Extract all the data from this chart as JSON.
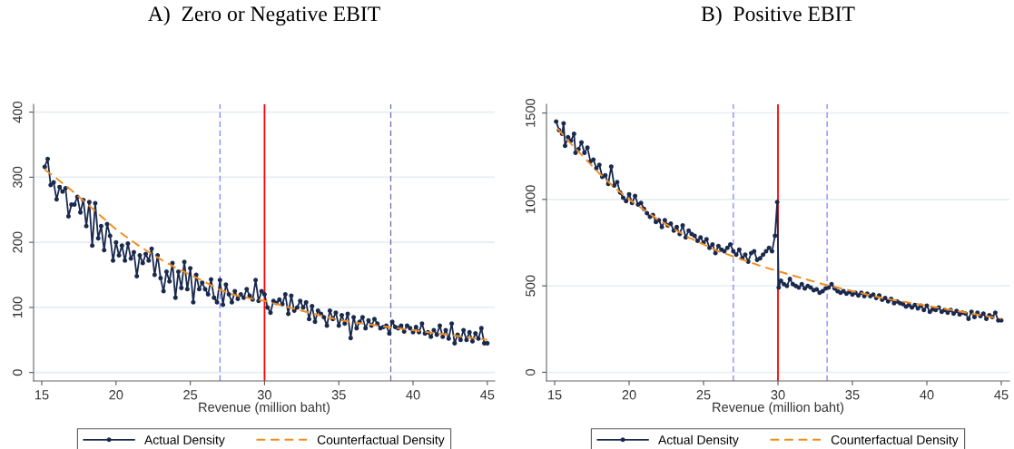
{
  "chart_data": [
    {
      "type": "line",
      "title": "A)  Zero or Negative EBIT",
      "xlabel": "Revenue (million baht)",
      "xlim": [
        14.45,
        45.5
      ],
      "xticks": [
        15,
        20,
        25,
        30,
        35,
        40,
        45
      ],
      "ylim": [
        -13,
        412
      ],
      "yticks": [
        0,
        100,
        200,
        300,
        400
      ],
      "grid": "y",
      "legend": "bottom",
      "series": [
        {
          "name": "Actual Density",
          "color": "#1a2a4f",
          "marker": "circle",
          "line_style": "solid",
          "x": [
            15.2,
            15.4,
            15.6,
            15.8,
            16.0,
            16.2,
            16.4,
            16.6,
            16.8,
            17.0,
            17.2,
            17.4,
            17.6,
            17.8,
            18.0,
            18.2,
            18.4,
            18.6,
            18.8,
            19.0,
            19.2,
            19.4,
            19.6,
            19.8,
            20.0,
            20.2,
            20.4,
            20.6,
            20.8,
            21.0,
            21.2,
            21.4,
            21.6,
            21.8,
            22.0,
            22.2,
            22.4,
            22.6,
            22.8,
            23.0,
            23.2,
            23.4,
            23.6,
            23.8,
            24.0,
            24.2,
            24.4,
            24.6,
            24.8,
            25.0,
            25.2,
            25.4,
            25.6,
            25.8,
            26.0,
            26.2,
            26.4,
            26.6,
            26.8,
            27.0,
            27.2,
            27.4,
            27.6,
            27.8,
            28.0,
            28.2,
            28.4,
            28.6,
            28.8,
            29.0,
            29.2,
            29.4,
            29.6,
            29.8,
            30.0,
            30.2,
            30.4,
            30.6,
            30.8,
            31.0,
            31.2,
            31.4,
            31.6,
            31.8,
            32.0,
            32.2,
            32.4,
            32.6,
            32.8,
            33.0,
            33.2,
            33.4,
            33.6,
            33.8,
            34.0,
            34.2,
            34.4,
            34.6,
            34.8,
            35.0,
            35.2,
            35.4,
            35.6,
            35.8,
            36.0,
            36.2,
            36.4,
            36.6,
            36.8,
            37.0,
            37.2,
            37.4,
            37.6,
            37.8,
            38.0,
            38.2,
            38.4,
            38.6,
            38.8,
            39.0,
            39.2,
            39.4,
            39.6,
            39.8,
            40.0,
            40.2,
            40.4,
            40.6,
            40.8,
            41.0,
            41.2,
            41.4,
            41.6,
            41.8,
            42.0,
            42.2,
            42.4,
            42.6,
            42.8,
            43.0,
            43.2,
            43.4,
            43.6,
            43.8,
            44.0,
            44.2,
            44.4,
            44.6,
            44.8,
            45.0
          ],
          "values": [
            316,
            328,
            288,
            292,
            266,
            285,
            278,
            283,
            240,
            258,
            258,
            270,
            246,
            265,
            225,
            262,
            195,
            260,
            206,
            225,
            188,
            228,
            210,
            172,
            200,
            180,
            195,
            172,
            198,
            175,
            185,
            148,
            180,
            168,
            182,
            172,
            190,
            150,
            180,
            145,
            125,
            155,
            140,
            168,
            115,
            155,
            130,
            170,
            128,
            160,
            108,
            150,
            128,
            138,
            128,
            120,
            143,
            115,
            108,
            142,
            104,
            135,
            120,
            108,
            125,
            113,
            120,
            115,
            128,
            118,
            112,
            142,
            110,
            125,
            120,
            100,
            92,
            110,
            107,
            112,
            105,
            120,
            90,
            118,
            95,
            100,
            110,
            100,
            108,
            82,
            102,
            78,
            95,
            90,
            85,
            72,
            95,
            82,
            92,
            72,
            88,
            75,
            90,
            53,
            85,
            68,
            78,
            85,
            68,
            80,
            72,
            82,
            75,
            68,
            70,
            72,
            60,
            78,
            70,
            68,
            72,
            63,
            72,
            68,
            62,
            70,
            62,
            75,
            60,
            62,
            55,
            65,
            58,
            72,
            55,
            65,
            52,
            75,
            45,
            58,
            50,
            65,
            50,
            62,
            48,
            60,
            52,
            68,
            45,
            45
          ]
        },
        {
          "name": "Counterfactual Density",
          "color": "#f08c1e",
          "marker": "none",
          "line_style": "dashed",
          "x": [
            15.2,
            16,
            17,
            18,
            19,
            20,
            21,
            22,
            23,
            24,
            25,
            26,
            27,
            28,
            29,
            30,
            31,
            32,
            33,
            34,
            35,
            36,
            37,
            38,
            39,
            40,
            41,
            42,
            43,
            44,
            45
          ],
          "values": [
            312,
            298,
            280,
            260,
            240,
            220,
            203,
            188,
            174,
            161,
            150,
            139,
            127,
            119,
            114,
            110,
            104,
            98,
            92,
            86,
            81,
            77,
            74,
            71,
            68,
            65,
            62,
            59,
            56,
            53,
            50
          ]
        }
      ],
      "ref_lines": [
        {
          "axis": "x",
          "value": 27,
          "color": "#8080ff",
          "line_style": "dashed"
        },
        {
          "axis": "x",
          "value": 30,
          "color": "#ff0000",
          "line_style": "solid"
        },
        {
          "axis": "x",
          "value": 38.5,
          "color": "#6a6aa8",
          "line_style": "dashed"
        }
      ]
    },
    {
      "type": "line",
      "title": "B)  Positive EBIT",
      "xlabel": "Revenue (million baht)",
      "xlim": [
        14.45,
        45.55
      ],
      "xticks": [
        15,
        20,
        25,
        30,
        35,
        40,
        45
      ],
      "ylim": [
        -50,
        1550
      ],
      "yticks": [
        0,
        500,
        1000,
        1500
      ],
      "grid": "y",
      "legend": "bottom",
      "series": [
        {
          "name": "Actual Density",
          "color": "#1a2a4f",
          "marker": "circle",
          "line_style": "solid",
          "x": [
            15.1,
            15.3,
            15.5,
            15.6,
            15.7,
            15.9,
            16.1,
            16.3,
            16.4,
            16.6,
            16.8,
            17.0,
            17.2,
            17.4,
            17.6,
            17.8,
            18.0,
            18.2,
            18.4,
            18.6,
            18.8,
            19.0,
            19.2,
            19.4,
            19.6,
            19.8,
            20.0,
            20.2,
            20.4,
            20.6,
            20.8,
            21.0,
            21.2,
            21.4,
            21.6,
            21.8,
            22.0,
            22.2,
            22.4,
            22.6,
            22.8,
            23.0,
            23.2,
            23.4,
            23.6,
            23.8,
            24.0,
            24.2,
            24.4,
            24.6,
            24.8,
            25.0,
            25.2,
            25.4,
            25.6,
            25.8,
            26.0,
            26.2,
            26.4,
            26.6,
            26.8,
            27.0,
            27.2,
            27.4,
            27.6,
            27.8,
            28.0,
            28.2,
            28.4,
            28.6,
            28.8,
            29.0,
            29.2,
            29.4,
            29.6,
            29.8,
            29.95,
            30.05,
            30.2,
            30.4,
            30.6,
            30.8,
            31.0,
            31.2,
            31.4,
            31.6,
            31.8,
            32.0,
            32.2,
            32.4,
            32.6,
            32.8,
            33.0,
            33.2,
            33.4,
            33.6,
            33.8,
            34.0,
            34.2,
            34.4,
            34.6,
            34.8,
            35.0,
            35.2,
            35.4,
            35.6,
            35.8,
            36.0,
            36.2,
            36.4,
            36.6,
            36.8,
            37.0,
            37.2,
            37.4,
            37.6,
            37.8,
            38.0,
            38.2,
            38.4,
            38.6,
            38.8,
            39.0,
            39.2,
            39.4,
            39.6,
            39.8,
            40.0,
            40.2,
            40.4,
            40.6,
            40.8,
            41.0,
            41.2,
            41.4,
            41.6,
            41.8,
            42.0,
            42.2,
            42.4,
            42.6,
            42.8,
            43.0,
            43.2,
            43.4,
            43.6,
            43.8,
            44.0,
            44.2,
            44.4,
            44.6,
            44.8,
            45.0
          ],
          "values": [
            1450,
            1400,
            1380,
            1440,
            1310,
            1360,
            1340,
            1380,
            1270,
            1290,
            1330,
            1270,
            1300,
            1220,
            1230,
            1180,
            1200,
            1130,
            1140,
            1090,
            1190,
            1080,
            1100,
            1040,
            1010,
            990,
            1030,
            980,
            1020,
            970,
            980,
            945,
            920,
            900,
            910,
            870,
            880,
            840,
            880,
            850,
            860,
            820,
            840,
            800,
            850,
            780,
            820,
            800,
            790,
            760,
            780,
            750,
            770,
            720,
            740,
            690,
            730,
            710,
            700,
            720,
            740,
            700,
            680,
            710,
            660,
            680,
            640,
            690,
            700,
            650,
            660,
            680,
            700,
            720,
            700,
            790,
            985,
            490,
            530,
            510,
            500,
            540,
            510,
            500,
            490,
            510,
            485,
            500,
            490,
            475,
            480,
            460,
            470,
            485,
            490,
            510,
            485,
            470,
            460,
            470,
            455,
            465,
            450,
            460,
            445,
            460,
            440,
            455,
            440,
            450,
            430,
            445,
            420,
            430,
            410,
            425,
            400,
            410,
            400,
            395,
            380,
            390,
            375,
            390,
            370,
            385,
            360,
            385,
            350,
            365,
            360,
            375,
            350,
            360,
            345,
            360,
            340,
            355,
            335,
            345,
            340,
            310,
            350,
            320,
            345,
            325,
            340,
            310,
            330,
            320,
            345,
            300,
            300
          ]
        },
        {
          "name": "Counterfactual Density",
          "color": "#f08c1e",
          "marker": "none",
          "line_style": "dashed",
          "x": [
            15.2,
            16,
            17,
            18,
            19,
            20,
            21,
            22,
            23,
            24,
            25,
            26,
            27,
            28,
            29,
            30,
            31,
            32,
            33,
            34,
            35,
            36,
            37,
            38,
            39,
            40,
            41,
            42,
            43,
            44,
            45
          ],
          "values": [
            1410,
            1330,
            1240,
            1150,
            1070,
            1000,
            940,
            880,
            830,
            780,
            740,
            700,
            670,
            640,
            610,
            585,
            560,
            535,
            510,
            490,
            470,
            450,
            430,
            415,
            400,
            385,
            370,
            355,
            340,
            325,
            310
          ]
        }
      ],
      "ref_lines": [
        {
          "axis": "x",
          "value": 27,
          "color": "#8080ff",
          "line_style": "dashed"
        },
        {
          "axis": "x",
          "value": 30,
          "color": "#ff0000",
          "line_style": "solid"
        },
        {
          "axis": "x",
          "value": 33.3,
          "color": "#8080ff",
          "line_style": "dashed"
        }
      ]
    }
  ]
}
